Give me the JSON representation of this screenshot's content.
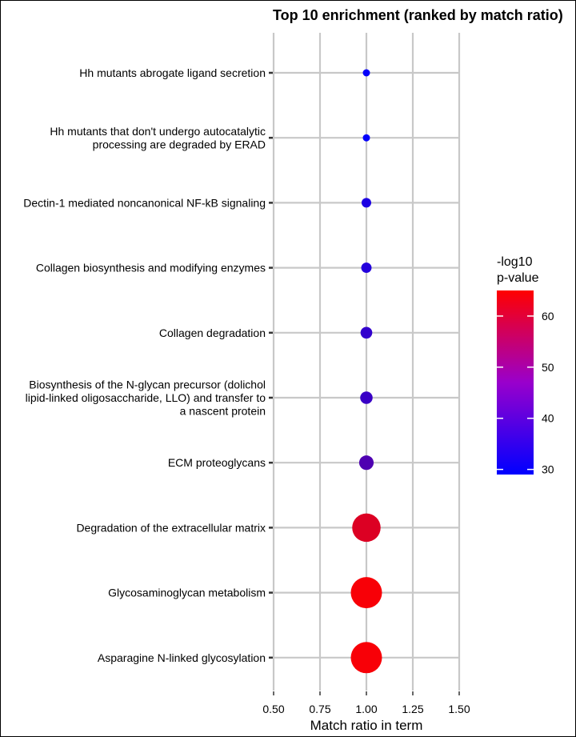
{
  "chart_data": {
    "type": "scatter",
    "title": "Top 10 enrichment (ranked by match ratio)",
    "xlabel": "Match ratio in term",
    "ylabel": "",
    "xlim": [
      0.5,
      1.5
    ],
    "xticks": [
      "0.50",
      "0.75",
      "1.00",
      "1.25",
      "1.50"
    ],
    "grid": true,
    "legend_position": "right",
    "colorbar": {
      "title_lines": [
        "-log10",
        "p-value"
      ],
      "ticks": [
        30,
        40,
        50,
        60
      ],
      "min": 29,
      "max": 65,
      "color_low": "#0000ff",
      "color_high": "#ff0000"
    },
    "categories": [
      "Hh mutants abrogate ligand secretion",
      "Hh mutants that don't undergo autocatalytic\nprocessing are degraded by ERAD",
      "Dectin-1 mediated noncanonical NF-kB signaling",
      "Collagen biosynthesis and modifying enzymes",
      "Collagen degradation",
      "Biosynthesis of the N-glycan precursor (dolichol\nlipid-linked oligosaccharide, LLO) and transfer to\na nascent protein",
      "ECM proteoglycans",
      "Degradation of the extracellular matrix",
      "Glycosaminoglycan metabolism",
      "Asparagine N-linked glycosylation"
    ],
    "x": [
      1.0,
      1.0,
      1.0,
      1.0,
      1.0,
      1.0,
      1.0,
      1.0,
      1.0,
      1.0
    ],
    "neg_log10_pvalue": [
      29.5,
      29.5,
      33,
      34,
      36,
      37,
      40,
      60,
      64,
      64
    ]
  }
}
